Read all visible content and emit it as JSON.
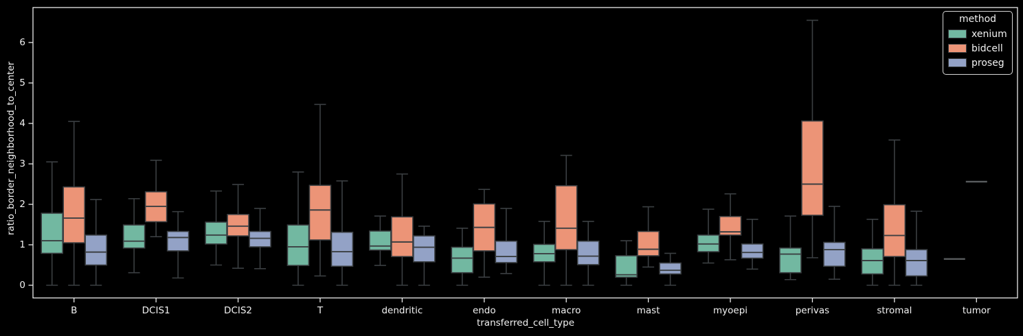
{
  "figure": {
    "background": "#000000",
    "spine_color": "#ebebeb",
    "text_color": "#f2f2f2",
    "box_edge_color": "#3b3f42",
    "degenerate_box_color": "#5a5d5f"
  },
  "axes": {
    "xlabel": "transferred_cell_type",
    "ylabel": "ratio_border_neighborhood_to_center",
    "yticks": [
      0,
      1,
      2,
      3,
      4,
      5,
      6
    ]
  },
  "legend": {
    "title": "method",
    "items": [
      {
        "label": "xenium",
        "color": "#72b8a1"
      },
      {
        "label": "bidcell",
        "color": "#ec9477"
      },
      {
        "label": "proseg",
        "color": "#93a2c6"
      }
    ]
  },
  "chart_data": {
    "type": "box",
    "title": "",
    "xlabel": "transferred_cell_type",
    "ylabel": "ratio_border_neighborhood_to_center",
    "ylim": [
      -0.31,
      6.86
    ],
    "grid": false,
    "legend_position": "upper right",
    "box_format": [
      "whisker_low",
      "q1",
      "median",
      "q3",
      "whisker_high"
    ],
    "categories": [
      "B",
      "DCIS1",
      "DCIS2",
      "T",
      "dendritic",
      "endo",
      "macro",
      "mast",
      "myoepi",
      "perivas",
      "stromal",
      "tumor"
    ],
    "series": [
      {
        "name": "xenium",
        "color": "#72b8a1",
        "boxes": [
          [
            0.0,
            0.79,
            1.1,
            1.78,
            3.05
          ],
          [
            0.31,
            0.92,
            1.09,
            1.49,
            2.14
          ],
          [
            0.5,
            1.02,
            1.24,
            1.56,
            2.33
          ],
          [
            0.0,
            0.49,
            0.95,
            1.49,
            2.8
          ],
          [
            0.49,
            0.87,
            0.97,
            1.34,
            1.71
          ],
          [
            0.0,
            0.31,
            0.67,
            0.94,
            1.41
          ],
          [
            0.0,
            0.58,
            0.78,
            1.01,
            1.58
          ],
          [
            0.0,
            0.2,
            0.26,
            0.73,
            1.1
          ],
          [
            0.55,
            0.83,
            1.02,
            1.24,
            1.88
          ],
          [
            0.14,
            0.31,
            0.77,
            0.92,
            1.71
          ],
          [
            0.0,
            0.28,
            0.61,
            0.9,
            1.63
          ],
          [
            0.65,
            0.65,
            0.65,
            0.65,
            0.65
          ]
        ]
      },
      {
        "name": "bidcell",
        "color": "#ec9477",
        "boxes": [
          [
            0.0,
            1.05,
            1.66,
            2.43,
            4.05
          ],
          [
            1.2,
            1.57,
            1.95,
            2.31,
            3.09
          ],
          [
            0.42,
            1.22,
            1.46,
            1.75,
            2.49
          ],
          [
            0.23,
            1.12,
            1.86,
            2.47,
            4.47
          ],
          [
            0.0,
            0.71,
            1.07,
            1.69,
            2.75
          ],
          [
            0.2,
            0.85,
            1.43,
            2.01,
            2.37
          ],
          [
            0.0,
            0.88,
            1.41,
            2.46,
            3.21
          ],
          [
            0.45,
            0.73,
            0.89,
            1.33,
            1.94
          ],
          [
            0.63,
            1.24,
            1.32,
            1.7,
            2.26
          ],
          [
            0.68,
            1.73,
            2.5,
            4.06,
            6.55
          ],
          [
            0.0,
            0.71,
            1.23,
            1.99,
            3.59
          ],
          [
            2.56,
            2.56,
            2.56,
            2.56,
            2.56
          ]
        ]
      },
      {
        "name": "proseg",
        "color": "#93a2c6",
        "boxes": [
          [
            0.0,
            0.5,
            0.82,
            1.24,
            2.12
          ],
          [
            0.18,
            0.85,
            1.18,
            1.33,
            1.82
          ],
          [
            0.41,
            0.95,
            1.16,
            1.33,
            1.9
          ],
          [
            0.0,
            0.47,
            0.83,
            1.31,
            2.58
          ],
          [
            0.0,
            0.58,
            0.94,
            1.22,
            1.46
          ],
          [
            0.29,
            0.56,
            0.71,
            1.09,
            1.9
          ],
          [
            0.0,
            0.51,
            0.72,
            1.09,
            1.58
          ],
          [
            0.0,
            0.28,
            0.37,
            0.55,
            0.79
          ],
          [
            0.4,
            0.67,
            0.81,
            1.02,
            1.63
          ],
          [
            0.15,
            0.47,
            0.88,
            1.06,
            1.95
          ],
          [
            0.0,
            0.23,
            0.61,
            0.88,
            1.83
          ],
          null
        ]
      }
    ]
  }
}
